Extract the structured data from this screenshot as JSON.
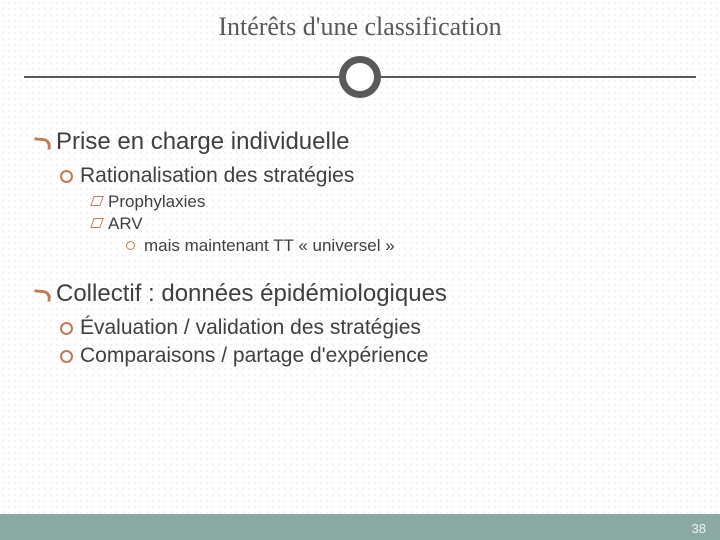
{
  "colors": {
    "background": "#ffffff",
    "dot_pattern": "#d4cfc9",
    "title_text": "#595959",
    "body_text": "#3f3f3f",
    "divider": "#595959",
    "ring_border": "#595959",
    "bullet_accent": "#c07a56",
    "footer_bg": "#8aa9a3",
    "footer_text": "#eef4f2"
  },
  "typography": {
    "title_font": "Georgia",
    "body_font": "Arial",
    "title_size_pt": 20,
    "lvl1_size_pt": 18,
    "lvl2_size_pt": 16,
    "lvl3_size_pt": 13,
    "lvl4_size_pt": 13
  },
  "title": "Intérêts d'une classification",
  "sections": [
    {
      "heading": "Prise en charge individuelle",
      "items": [
        {
          "text": "Rationalisation des stratégies",
          "subitems": [
            {
              "text": "Prophylaxies"
            },
            {
              "text": "ARV",
              "notes": [
                "mais maintenant TT « universel »"
              ]
            }
          ]
        }
      ]
    },
    {
      "heading": "Collectif : données épidémiologiques",
      "items": [
        {
          "text": "Évaluation / validation des stratégies"
        },
        {
          "text": "Comparaisons / partage d'expérience"
        }
      ]
    }
  ],
  "page_number": "38"
}
